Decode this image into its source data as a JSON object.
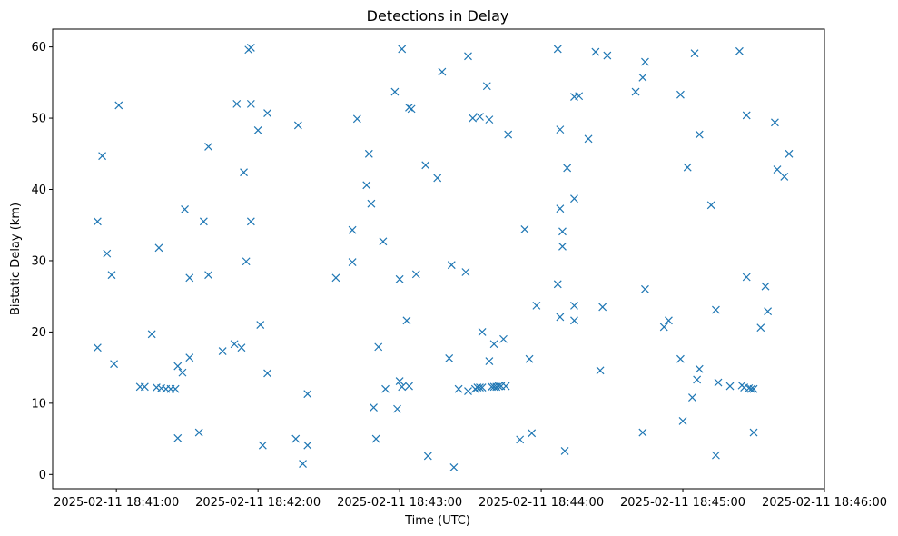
{
  "chart_data": {
    "type": "scatter",
    "title": "Detections in Delay",
    "xlabel": "Time (UTC)",
    "ylabel": "Bistatic Delay (km)",
    "marker": "x",
    "color": "#1f77b4",
    "grid": false,
    "x_is_time": true,
    "xlim": [
      "2025-02-11 18:40:33",
      "2025-02-11 18:46:00"
    ],
    "ylim": [
      -2,
      62.5
    ],
    "x_ticks": [
      "2025-02-11 18:41:00",
      "2025-02-11 18:42:00",
      "2025-02-11 18:43:00",
      "2025-02-11 18:44:00",
      "2025-02-11 18:45:00",
      "2025-02-11 18:46:00"
    ],
    "y_ticks": [
      0,
      10,
      20,
      30,
      40,
      50,
      60
    ],
    "points": [
      [
        "18:40:52",
        17.8
      ],
      [
        "18:40:52",
        35.5
      ],
      [
        "18:40:54",
        44.7
      ],
      [
        "18:40:56",
        31.0
      ],
      [
        "18:40:58",
        28.0
      ],
      [
        "18:40:59",
        15.5
      ],
      [
        "18:41:01",
        51.8
      ],
      [
        "18:41:10",
        12.3
      ],
      [
        "18:41:12",
        12.3
      ],
      [
        "18:41:15",
        19.7
      ],
      [
        "18:41:17",
        12.2
      ],
      [
        "18:41:18",
        31.8
      ],
      [
        "18:41:19",
        12.1
      ],
      [
        "18:41:21",
        12.0
      ],
      [
        "18:41:23",
        12.0
      ],
      [
        "18:41:25",
        12.0
      ],
      [
        "18:41:26",
        5.1
      ],
      [
        "18:41:26",
        15.2
      ],
      [
        "18:41:28",
        14.3
      ],
      [
        "18:41:29",
        37.2
      ],
      [
        "18:41:31",
        16.4
      ],
      [
        "18:41:31",
        27.6
      ],
      [
        "18:41:35",
        5.9
      ],
      [
        "18:41:37",
        35.5
      ],
      [
        "18:41:39",
        46.0
      ],
      [
        "18:41:39",
        28.0
      ],
      [
        "18:41:45",
        17.3
      ],
      [
        "18:41:50",
        18.3
      ],
      [
        "18:41:51",
        52.0
      ],
      [
        "18:41:53",
        17.8
      ],
      [
        "18:41:54",
        42.4
      ],
      [
        "18:41:55",
        29.9
      ],
      [
        "18:41:56",
        59.6
      ],
      [
        "18:41:57",
        59.9
      ],
      [
        "18:41:57",
        35.5
      ],
      [
        "18:41:57",
        52.0
      ],
      [
        "18:42:00",
        48.3
      ],
      [
        "18:42:01",
        21.0
      ],
      [
        "18:42:02",
        4.1
      ],
      [
        "18:42:04",
        50.7
      ],
      [
        "18:42:04",
        14.2
      ],
      [
        "18:42:16",
        5.0
      ],
      [
        "18:42:17",
        49.0
      ],
      [
        "18:42:19",
        1.5
      ],
      [
        "18:42:21",
        11.3
      ],
      [
        "18:42:21",
        4.1
      ],
      [
        "18:42:33",
        27.6
      ],
      [
        "18:42:40",
        34.3
      ],
      [
        "18:42:40",
        29.8
      ],
      [
        "18:42:42",
        49.9
      ],
      [
        "18:42:46",
        40.6
      ],
      [
        "18:42:47",
        45.0
      ],
      [
        "18:42:48",
        38.0
      ],
      [
        "18:42:49",
        9.4
      ],
      [
        "18:42:50",
        5.0
      ],
      [
        "18:42:51",
        17.9
      ],
      [
        "18:42:53",
        32.7
      ],
      [
        "18:42:54",
        12.0
      ],
      [
        "18:42:58",
        53.7
      ],
      [
        "18:42:59",
        9.2
      ],
      [
        "18:43:00",
        13.1
      ],
      [
        "18:43:00",
        27.4
      ],
      [
        "18:43:01",
        12.3
      ],
      [
        "18:43:01",
        59.7
      ],
      [
        "18:43:03",
        21.6
      ],
      [
        "18:43:04",
        12.4
      ],
      [
        "18:43:04",
        51.5
      ],
      [
        "18:43:05",
        51.3
      ],
      [
        "18:43:07",
        28.1
      ],
      [
        "18:43:11",
        43.4
      ],
      [
        "18:43:12",
        2.6
      ],
      [
        "18:43:16",
        41.6
      ],
      [
        "18:43:18",
        56.5
      ],
      [
        "18:43:21",
        16.3
      ],
      [
        "18:43:22",
        29.4
      ],
      [
        "18:43:23",
        1.0
      ],
      [
        "18:43:25",
        12.0
      ],
      [
        "18:43:28",
        28.4
      ],
      [
        "18:43:29",
        11.7
      ],
      [
        "18:43:29",
        58.7
      ],
      [
        "18:43:31",
        50.0
      ],
      [
        "18:43:32",
        12.0
      ],
      [
        "18:43:33",
        12.2
      ],
      [
        "18:43:34",
        50.2
      ],
      [
        "18:43:34",
        12.2
      ],
      [
        "18:43:35",
        20.0
      ],
      [
        "18:43:35",
        12.2
      ],
      [
        "18:43:37",
        54.5
      ],
      [
        "18:43:38",
        49.8
      ],
      [
        "18:43:38",
        15.9
      ],
      [
        "18:43:39",
        12.3
      ],
      [
        "18:43:40",
        18.3
      ],
      [
        "18:43:40",
        12.3
      ],
      [
        "18:43:41",
        12.3
      ],
      [
        "18:43:42",
        12.4
      ],
      [
        "18:43:43",
        12.4
      ],
      [
        "18:43:44",
        19.0
      ],
      [
        "18:43:45",
        12.4
      ],
      [
        "18:43:46",
        47.7
      ],
      [
        "18:43:51",
        4.9
      ],
      [
        "18:43:53",
        34.4
      ],
      [
        "18:43:55",
        16.2
      ],
      [
        "18:43:56",
        5.8
      ],
      [
        "18:43:58",
        23.7
      ],
      [
        "18:44:07",
        26.7
      ],
      [
        "18:44:07",
        59.7
      ],
      [
        "18:44:08",
        22.1
      ],
      [
        "18:44:08",
        48.4
      ],
      [
        "18:44:08",
        37.3
      ],
      [
        "18:44:09",
        34.1
      ],
      [
        "18:44:09",
        32.0
      ],
      [
        "18:44:10",
        3.3
      ],
      [
        "18:44:11",
        43.0
      ],
      [
        "18:44:14",
        38.7
      ],
      [
        "18:44:14",
        53.0
      ],
      [
        "18:44:14",
        23.7
      ],
      [
        "18:44:14",
        21.6
      ],
      [
        "18:44:16",
        53.1
      ],
      [
        "18:44:20",
        47.1
      ],
      [
        "18:44:23",
        59.3
      ],
      [
        "18:44:25",
        14.6
      ],
      [
        "18:44:26",
        23.5
      ],
      [
        "18:44:28",
        58.8
      ],
      [
        "18:44:40",
        53.7
      ],
      [
        "18:44:43",
        5.9
      ],
      [
        "18:44:43",
        55.7
      ],
      [
        "18:44:44",
        57.9
      ],
      [
        "18:44:44",
        26.0
      ],
      [
        "18:44:52",
        20.7
      ],
      [
        "18:44:54",
        21.6
      ],
      [
        "18:44:59",
        16.2
      ],
      [
        "18:44:59",
        53.3
      ],
      [
        "18:45:00",
        7.5
      ],
      [
        "18:45:02",
        43.1
      ],
      [
        "18:45:04",
        10.8
      ],
      [
        "18:45:05",
        59.1
      ],
      [
        "18:45:06",
        13.3
      ],
      [
        "18:45:07",
        47.7
      ],
      [
        "18:45:07",
        14.8
      ],
      [
        "18:45:12",
        37.8
      ],
      [
        "18:45:14",
        2.7
      ],
      [
        "18:45:14",
        23.1
      ],
      [
        "18:45:15",
        12.9
      ],
      [
        "18:45:20",
        12.4
      ],
      [
        "18:45:24",
        59.4
      ],
      [
        "18:45:25",
        12.5
      ],
      [
        "18:45:26",
        12.2
      ],
      [
        "18:45:27",
        27.7
      ],
      [
        "18:45:27",
        50.4
      ],
      [
        "18:45:28",
        12.1
      ],
      [
        "18:45:29",
        12.0
      ],
      [
        "18:45:30",
        5.9
      ],
      [
        "18:45:30",
        12.0
      ],
      [
        "18:45:33",
        20.6
      ],
      [
        "18:45:35",
        26.4
      ],
      [
        "18:45:36",
        22.9
      ],
      [
        "18:45:39",
        49.4
      ],
      [
        "18:45:40",
        42.8
      ],
      [
        "18:45:43",
        41.8
      ],
      [
        "18:45:45",
        45.0
      ]
    ]
  }
}
